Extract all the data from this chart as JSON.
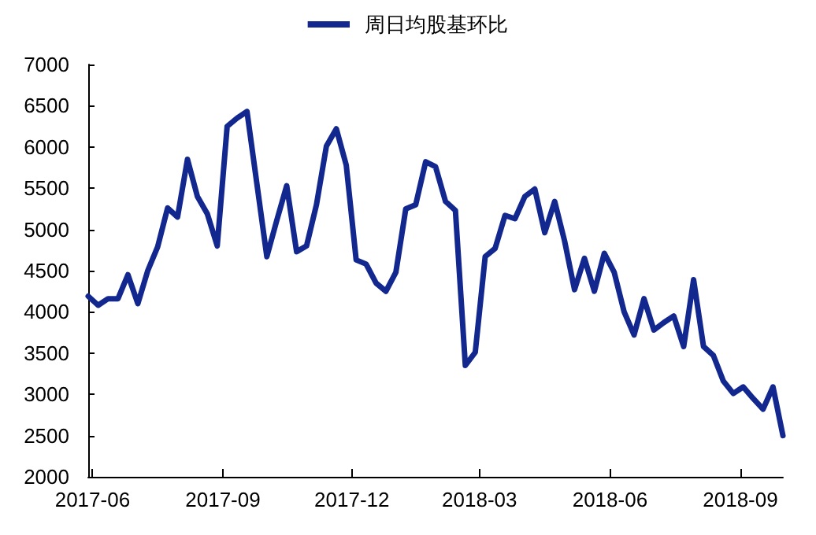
{
  "chart_data": {
    "type": "line",
    "legend": "top",
    "grid": false,
    "marker": "none",
    "line_style": "solid",
    "x": [
      "2017-05-29",
      "2017-06-05",
      "2017-06-12",
      "2017-06-19",
      "2017-06-26",
      "2017-07-03",
      "2017-07-10",
      "2017-07-17",
      "2017-07-24",
      "2017-07-31",
      "2017-08-07",
      "2017-08-14",
      "2017-08-21",
      "2017-08-28",
      "2017-09-04",
      "2017-09-11",
      "2017-09-18",
      "2017-09-25",
      "2017-10-02",
      "2017-10-09",
      "2017-10-16",
      "2017-10-23",
      "2017-10-30",
      "2017-11-06",
      "2017-11-13",
      "2017-11-20",
      "2017-11-27",
      "2017-12-04",
      "2017-12-11",
      "2017-12-18",
      "2017-12-25",
      "2018-01-01",
      "2018-01-08",
      "2018-01-15",
      "2018-01-22",
      "2018-01-29",
      "2018-02-05",
      "2018-02-12",
      "2018-02-19",
      "2018-02-26",
      "2018-03-05",
      "2018-03-12",
      "2018-03-19",
      "2018-03-26",
      "2018-04-02",
      "2018-04-09",
      "2018-04-16",
      "2018-04-23",
      "2018-04-30",
      "2018-05-07",
      "2018-05-14",
      "2018-05-21",
      "2018-05-28",
      "2018-06-04",
      "2018-06-11",
      "2018-06-18",
      "2018-06-25",
      "2018-07-02",
      "2018-07-09",
      "2018-07-16",
      "2018-07-23",
      "2018-07-30",
      "2018-08-06",
      "2018-08-13",
      "2018-08-20",
      "2018-08-27",
      "2018-09-03",
      "2018-09-10",
      "2018-09-17",
      "2018-09-24",
      "2018-10-01"
    ],
    "series": [
      {
        "name": "周日均股基环比",
        "color": "#13288f",
        "values": [
          4190,
          4080,
          4160,
          4160,
          4450,
          4100,
          4500,
          4790,
          5260,
          5150,
          5850,
          5400,
          5190,
          4800,
          6250,
          6350,
          6430,
          5550,
          4670,
          5110,
          5530,
          4730,
          4800,
          5300,
          6010,
          6220,
          5780,
          4630,
          4580,
          4350,
          4250,
          4480,
          5250,
          5300,
          5820,
          5760,
          5340,
          5230,
          3350,
          3510,
          4670,
          4770,
          5170,
          5130,
          5400,
          5490,
          4960,
          5340,
          4860,
          4270,
          4650,
          4250,
          4710,
          4480,
          4000,
          3720,
          4160,
          3780,
          3870,
          3950,
          3580,
          4390,
          3580,
          3470,
          3160,
          3010,
          3090,
          2950,
          2820,
          3090,
          2500
        ]
      }
    ],
    "xlim": [
      "2017-05-29",
      "2018-10-01"
    ],
    "xticks": [
      {
        "value": "2017-06-01",
        "label": "2017-06"
      },
      {
        "value": "2017-09-01",
        "label": "2017-09"
      },
      {
        "value": "2017-12-01",
        "label": "2017-12"
      },
      {
        "value": "2018-03-01",
        "label": "2018-03"
      },
      {
        "value": "2018-06-01",
        "label": "2018-06"
      },
      {
        "value": "2018-09-01",
        "label": "2018-09"
      }
    ],
    "ylim": [
      2000,
      7000
    ],
    "yticks": [
      2000,
      2500,
      3000,
      3500,
      4000,
      4500,
      5000,
      5500,
      6000,
      6500,
      7000
    ]
  }
}
